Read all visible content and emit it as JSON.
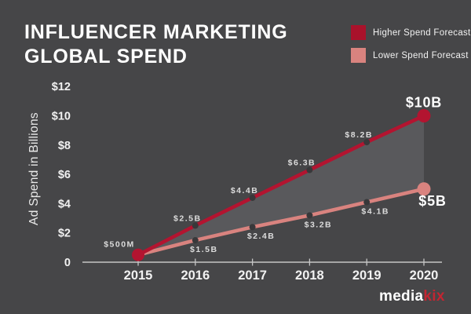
{
  "title": {
    "line1": "INFLUENCER MARKETING",
    "line2": "GLOBAL SPEND"
  },
  "legend": {
    "items": [
      {
        "label": "Higher Spend Forecast",
        "color": "#a9122b"
      },
      {
        "label": "Lower Spend Forecast",
        "color": "#d9837f"
      }
    ]
  },
  "logo": {
    "part1": "media",
    "part2": "kix",
    "part2_color": "#c32531"
  },
  "chart_data": {
    "type": "line",
    "title": "Influencer Marketing Global Spend",
    "categories": [
      "2015",
      "2016",
      "2017",
      "2018",
      "2019",
      "2020"
    ],
    "series": [
      {
        "name": "Higher Spend Forecast",
        "color": "#b31430",
        "values": [
          0.5,
          2.5,
          4.4,
          6.3,
          8.2,
          10
        ],
        "point_labels": [
          "$500M",
          "$2.5B",
          "$4.4B",
          "$6.3B",
          "$8.2B",
          "$10B"
        ]
      },
      {
        "name": "Lower Spend Forecast",
        "color": "#d9837f",
        "values": [
          0.5,
          1.5,
          2.4,
          3.2,
          4.1,
          5
        ],
        "point_labels": [
          null,
          "$1.5B",
          "$2.4B",
          "$3.2B",
          "$4.1B",
          "$5B"
        ]
      }
    ],
    "xlabel": "",
    "ylabel": "Ad Spend in Billions",
    "ylim": [
      0,
      12
    ],
    "yticks": [
      {
        "value": 12,
        "label": "$12"
      },
      {
        "value": 10,
        "label": "$10"
      },
      {
        "value": 8,
        "label": "$8"
      },
      {
        "value": 6,
        "label": "$6"
      },
      {
        "value": 4,
        "label": "$4"
      },
      {
        "value": 2,
        "label": "$2"
      },
      {
        "value": 0,
        "label": "0"
      }
    ],
    "grid": "off",
    "legend_position": "top-right",
    "fill_between_color": "#59595c",
    "point_dot_color": "#38383a",
    "axis_color": "#c6c6c6",
    "label_color": "#dcdcdc",
    "tick_label_color": "#f1f1f1",
    "background": "#464648"
  }
}
